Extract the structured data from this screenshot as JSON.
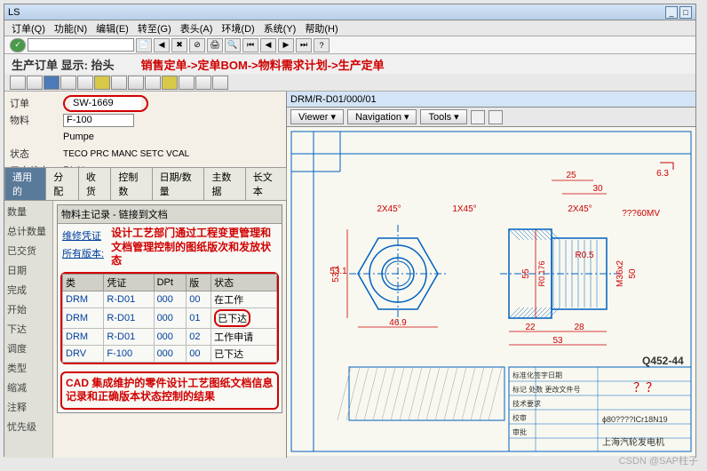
{
  "titlebar": {
    "title": "LS"
  },
  "menu": {
    "items": [
      "订单(Q)",
      "功能(N)",
      "编辑(E)",
      "转至(G)",
      "表头(A)",
      "环境(D)",
      "系统(Y)",
      "帮助(H)"
    ]
  },
  "header": {
    "title": "生产订单 显示: 抬头",
    "annotation": "销售定单->定单BOM->物料需求计划->生产定单"
  },
  "form": {
    "order_label": "订单",
    "order_value": "SW-1669",
    "material_label": "物料",
    "material_value": "F-100",
    "material_desc": "Pumpe",
    "status_label": "状态",
    "status_value": "TECO PRC  MANC SETC VCAL",
    "user_status_label": "用户状态",
    "user_status_value": "RLAL"
  },
  "tabs": {
    "items": [
      "通用的",
      "分配",
      "收货",
      "控制数",
      "日期/数量",
      "主数据",
      "长文本"
    ],
    "active": 0
  },
  "side_labels": {
    "items": [
      "数量",
      "总计数量",
      "已交货",
      "",
      "日期",
      "",
      "完成",
      "开始",
      "下达",
      "",
      "调度",
      "类型",
      "缩减",
      "注释",
      "",
      "忧先级"
    ]
  },
  "doc_panel": {
    "title": "物料主记录 - 链接到文档",
    "link1": "维修凭证",
    "link2": "所有版本:",
    "note1": "设计工艺部门通过工程变更管理和文档管理控制的图纸版次和发放状态",
    "columns": [
      "类",
      "凭证",
      "DPt",
      "版",
      "状态"
    ],
    "rows": [
      {
        "type": "DRM",
        "doc": "R-D01",
        "dpt": "000",
        "ver": "00",
        "status": "在工作",
        "circled": false
      },
      {
        "type": "DRM",
        "doc": "R-D01",
        "dpt": "000",
        "ver": "01",
        "status": "已下达",
        "circled": true
      },
      {
        "type": "DRM",
        "doc": "R-D01",
        "dpt": "000",
        "ver": "02",
        "status": "工作申请",
        "circled": false
      },
      {
        "type": "DRV",
        "doc": "F-100",
        "dpt": "000",
        "ver": "00",
        "status": "已下达",
        "circled": false
      }
    ],
    "note2": "CAD 集成维护的零件设计工艺图纸文档信息记录和正确版本状态控制的结果"
  },
  "cad": {
    "title": "DRM/R-D01/000/01",
    "buttons": [
      "Viewer",
      "Navigation",
      "Tools"
    ],
    "drawing": {
      "dim_color": "#cc0000",
      "center_color": "#0060c0",
      "outline_color": "#0060c0",
      "dims": {
        "top_right_25": "25",
        "top_right_30": "30",
        "angle_63": "6.3",
        "left_2x45": "2X45°",
        "mid_1x45": "1X45°",
        "right_2x45": "2X45°",
        "threads": "???60MV",
        "height_531": "53.1",
        "height_55": "55",
        "r0176": "R0.176",
        "r05": "R0.5",
        "m36x2": "M36x2",
        "h50": "50",
        "w22": "22",
        "w28": "28",
        "w469": "46.9",
        "w53": "53",
        "title_q": "Q452-44",
        "qmark": "？？",
        "phi": "ϕ80????ICr18N19",
        "company": "上海汽轮发电机"
      },
      "table_labels": [
        "标准化签字日期",
        "标记 处数 更改文件号",
        "技术要求",
        "校审",
        "审批"
      ]
    }
  },
  "watermark": "CSDN @SAP柱子"
}
